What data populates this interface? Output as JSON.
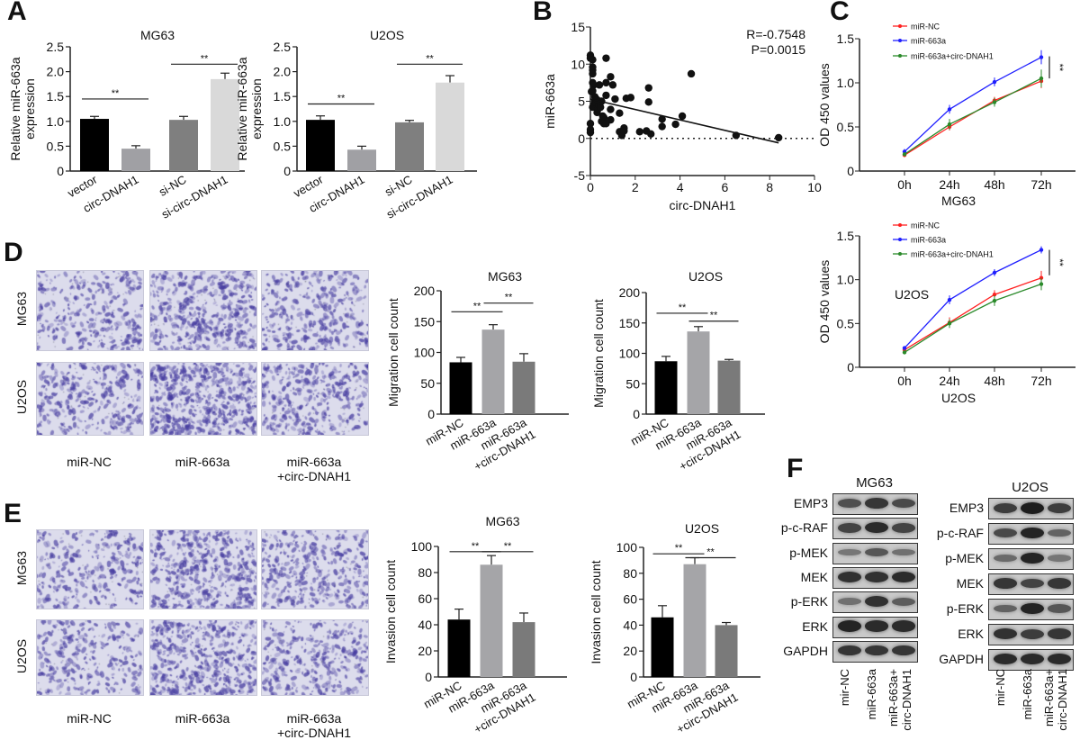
{
  "panels": {
    "A": "A",
    "B": "B",
    "C": "C",
    "D": "D",
    "E": "E",
    "F": "F"
  },
  "chart_data": [
    {
      "type": "bar",
      "panel": "A",
      "title": "MG63",
      "ylabel": [
        "Relative miR-663a",
        "expression"
      ],
      "categories": [
        [
          "vector"
        ],
        [
          "circ-DNAH1"
        ],
        [
          "si-NC"
        ],
        [
          "si-circ-DNAH1"
        ]
      ],
      "values": [
        1.05,
        0.45,
        1.03,
        1.85
      ],
      "errors": [
        0.05,
        0.06,
        0.07,
        0.12
      ],
      "colors": [
        "#000000",
        "#a0a0a4",
        "#7f7f7f",
        "#d9d9d9"
      ],
      "ylim": [
        0,
        2.5
      ],
      "yticks": [
        "0",
        "0.5",
        "1.0",
        "1.5",
        "2.0",
        "2.5"
      ],
      "significance": [
        {
          "from": 0,
          "to": 1,
          "y": 1.45,
          "label": "**"
        },
        {
          "from": 2,
          "to": 3,
          "y": 2.15,
          "label": "**"
        }
      ]
    },
    {
      "type": "bar",
      "panel": "A",
      "title": "U2OS",
      "ylabel": [
        "Relative miR-663a",
        "expression"
      ],
      "categories": [
        [
          "vector"
        ],
        [
          "circ-DNAH1"
        ],
        [
          "si-NC"
        ],
        [
          "si-circ-DNAH1"
        ]
      ],
      "values": [
        1.03,
        0.43,
        0.98,
        1.78
      ],
      "errors": [
        0.08,
        0.07,
        0.04,
        0.14
      ],
      "colors": [
        "#000000",
        "#a0a0a4",
        "#7f7f7f",
        "#d9d9d9"
      ],
      "ylim": [
        0,
        2.5
      ],
      "yticks": [
        "0",
        "0.5",
        "1.0",
        "1.5",
        "2.0",
        "2.5"
      ],
      "significance": [
        {
          "from": 0,
          "to": 1,
          "y": 1.35,
          "label": "**"
        },
        {
          "from": 2,
          "to": 3,
          "y": 2.15,
          "label": "**"
        }
      ]
    },
    {
      "type": "scatter",
      "panel": "B",
      "xlabel": "circ-DNAH1",
      "ylabel": "miR-663a",
      "xlim": [
        0,
        10
      ],
      "ylim": [
        -5,
        15
      ],
      "xticks": [
        "0",
        "2",
        "4",
        "6",
        "8",
        "10"
      ],
      "yticks": [
        "-5",
        "0",
        "5",
        "10",
        "15"
      ],
      "annotations": [
        "R=-0.7548",
        "P=0.0015"
      ],
      "fit_line": [
        [
          0,
          5.3
        ],
        [
          8.4,
          -0.6
        ]
      ],
      "reference_line_y": 0,
      "points": [
        [
          0,
          11.2
        ],
        [
          0,
          10.8
        ],
        [
          0.05,
          6.3
        ],
        [
          0,
          2
        ],
        [
          0,
          1.2
        ],
        [
          0,
          0.8
        ],
        [
          0.1,
          10.6
        ],
        [
          0.1,
          9.6
        ],
        [
          0.1,
          9.2
        ],
        [
          0.1,
          8.7
        ],
        [
          0.1,
          7.5
        ],
        [
          0.15,
          7.2
        ],
        [
          0.1,
          6.4
        ],
        [
          0.15,
          4.5
        ],
        [
          0.1,
          4.2
        ],
        [
          0.2,
          5.6
        ],
        [
          0.2,
          5
        ],
        [
          0.25,
          4.8
        ],
        [
          0.3,
          3.5
        ],
        [
          0.3,
          5.2
        ],
        [
          0.35,
          4
        ],
        [
          0.4,
          7.2
        ],
        [
          0.4,
          4.4
        ],
        [
          0.45,
          4.2
        ],
        [
          0.5,
          2.3
        ],
        [
          0.5,
          5
        ],
        [
          0.55,
          3
        ],
        [
          0.6,
          2.8
        ],
        [
          0.6,
          2
        ],
        [
          0.7,
          10.8
        ],
        [
          0.7,
          7.5
        ],
        [
          0.7,
          5.8
        ],
        [
          0.7,
          2
        ],
        [
          0.9,
          8.3
        ],
        [
          0.9,
          3.9
        ],
        [
          0.9,
          2.5
        ],
        [
          1,
          7.2
        ],
        [
          1.1,
          5.3
        ],
        [
          1.3,
          3.4
        ],
        [
          1.3,
          0.9
        ],
        [
          1.4,
          0.4
        ],
        [
          1.5,
          1.4
        ],
        [
          1.5,
          1
        ],
        [
          1.6,
          5.4
        ],
        [
          1.8,
          5.5
        ],
        [
          2.2,
          0.9
        ],
        [
          2.5,
          1
        ],
        [
          2.6,
          6.8
        ],
        [
          2.6,
          4.9
        ],
        [
          2.7,
          0.6
        ],
        [
          3.2,
          2.6
        ],
        [
          3.2,
          1.6
        ],
        [
          3.8,
          1.9
        ],
        [
          4.1,
          3
        ],
        [
          4.5,
          8.7
        ],
        [
          6.5,
          0.4
        ],
        [
          8.4,
          0.1
        ]
      ]
    },
    {
      "type": "line",
      "panel": "C",
      "xlabel": "MG63",
      "ylabel": "OD 450 values",
      "categories": [
        "0h",
        "24h",
        "48h",
        "72h"
      ],
      "ylim": [
        0,
        1.5
      ],
      "yticks": [
        "0",
        "0.5",
        "1.0",
        "1.5"
      ],
      "legend": "top-left",
      "series": [
        {
          "name": "miR-NC",
          "color": "#ff2020",
          "values": [
            0.18,
            0.5,
            0.8,
            1.02
          ],
          "errors": [
            0.02,
            0.04,
            0.04,
            0.08
          ]
        },
        {
          "name": "miR-663a",
          "color": "#1f1fff",
          "values": [
            0.22,
            0.7,
            1.01,
            1.29
          ],
          "errors": [
            0.03,
            0.05,
            0.05,
            0.08
          ]
        },
        {
          "name": "miR-663a+circ-DNAH1",
          "color": "#2a8a2a",
          "values": [
            0.19,
            0.53,
            0.78,
            1.05
          ],
          "errors": [
            0.02,
            0.06,
            0.05,
            0.1
          ]
        }
      ],
      "significance": {
        "label": "**",
        "from": 1.3,
        "to": 1.05
      }
    },
    {
      "type": "line",
      "panel": "C",
      "xlabel": "U2OS",
      "ylabel": "OD 450 values",
      "inner_label": "U2OS",
      "categories": [
        "0h",
        "24h",
        "48h",
        "72h"
      ],
      "ylim": [
        0,
        1.5
      ],
      "yticks": [
        "0",
        "0.5",
        "1.0",
        "1.5"
      ],
      "legend": "top-left",
      "series": [
        {
          "name": "miR-NC",
          "color": "#ff2020",
          "values": [
            0.2,
            0.51,
            0.83,
            1.02
          ],
          "errors": [
            0.02,
            0.06,
            0.05,
            0.08
          ]
        },
        {
          "name": "miR-663a",
          "color": "#1f1fff",
          "values": [
            0.22,
            0.77,
            1.08,
            1.34
          ],
          "errors": [
            0.02,
            0.05,
            0.04,
            0.04
          ]
        },
        {
          "name": "miR-663a+circ-DNAH1",
          "color": "#2a8a2a",
          "values": [
            0.17,
            0.5,
            0.76,
            0.95
          ],
          "errors": [
            0.02,
            0.05,
            0.06,
            0.07
          ]
        }
      ],
      "significance": {
        "label": "**",
        "from": 1.34,
        "to": 1.05
      }
    },
    {
      "type": "bar",
      "panel": "D",
      "title": "MG63",
      "ylabel": [
        "Migration cell count"
      ],
      "categories": [
        [
          "miR-NC"
        ],
        [
          "miR-663a"
        ],
        [
          "miR-663a",
          "+circ-DNAH1"
        ]
      ],
      "values": [
        84,
        137,
        85
      ],
      "errors": [
        8,
        8,
        13
      ],
      "colors": [
        "#000000",
        "#a5a5a8",
        "#7a7a7a"
      ],
      "ylim": [
        0,
        200
      ],
      "yticks": [
        "0",
        "50",
        "100",
        "150",
        "200"
      ],
      "significance": [
        {
          "from": 0,
          "to": 1,
          "y": 166,
          "label": "**"
        },
        {
          "from": 1,
          "to": 2,
          "y": 180,
          "label": "**"
        }
      ]
    },
    {
      "type": "bar",
      "panel": "D",
      "title": "U2OS",
      "ylabel": [
        "Migration cell count"
      ],
      "categories": [
        [
          "miR-NC"
        ],
        [
          "miR-663a"
        ],
        [
          "miR-663a",
          "+circ-DNAH1"
        ]
      ],
      "values": [
        87,
        136,
        88
      ],
      "errors": [
        8,
        8,
        2
      ],
      "colors": [
        "#000000",
        "#a5a5a8",
        "#7a7a7a"
      ],
      "ylim": [
        0,
        200
      ],
      "yticks": [
        "0",
        "50",
        "100",
        "150",
        "200"
      ],
      "significance": [
        {
          "from": 0,
          "to": 1,
          "y": 166,
          "label": "**"
        },
        {
          "from": 1,
          "to": 2,
          "y": 153,
          "label": "**"
        }
      ]
    },
    {
      "type": "bar",
      "panel": "E",
      "title": "MG63",
      "ylabel": [
        "Invasion cell count"
      ],
      "categories": [
        [
          "miR-NC"
        ],
        [
          "miR-663a"
        ],
        [
          "miR-663a",
          "+circ-DNAH1"
        ]
      ],
      "values": [
        44,
        86,
        42
      ],
      "errors": [
        8,
        7,
        7
      ],
      "colors": [
        "#000000",
        "#a5a5a8",
        "#7a7a7a"
      ],
      "ylim": [
        0,
        100
      ],
      "yticks": [
        "0",
        "20",
        "40",
        "60",
        "80",
        "100"
      ],
      "significance": [
        {
          "from": 0,
          "to": 1,
          "y": 96,
          "label": "**"
        },
        {
          "from": 1,
          "to": 2,
          "y": 96,
          "label": "**"
        }
      ]
    },
    {
      "type": "bar",
      "panel": "E",
      "title": "U2OS",
      "ylabel": [
        "Invasion cell count"
      ],
      "categories": [
        [
          "miR-NC"
        ],
        [
          "miR-663a"
        ],
        [
          "miR-663a",
          "+circ-DNAH1"
        ]
      ],
      "values": [
        46,
        87,
        40
      ],
      "errors": [
        9,
        5,
        2
      ],
      "colors": [
        "#000000",
        "#a5a5a8",
        "#7a7a7a"
      ],
      "ylim": [
        0,
        100
      ],
      "yticks": [
        "0",
        "20",
        "40",
        "60",
        "80",
        "100"
      ],
      "significance": [
        {
          "from": 0,
          "to": 1,
          "y": 95,
          "label": "**"
        },
        {
          "from": 1,
          "to": 2,
          "y": 92,
          "label": "**"
        }
      ]
    }
  ],
  "micrographs": {
    "D": {
      "rows": [
        "MG63",
        "U2OS"
      ],
      "columns": [
        [
          "miR-NC"
        ],
        [
          "miR-663a"
        ],
        [
          "miR-663a",
          "+circ-DNAH1"
        ]
      ],
      "stain_color": "#5a4fb0",
      "cell_density": [
        [
          0.35,
          0.6,
          0.4
        ],
        [
          0.4,
          0.85,
          0.45
        ]
      ]
    },
    "E": {
      "rows": [
        "MG63",
        "U2OS"
      ],
      "columns": [
        [
          "miR-NC"
        ],
        [
          "miR-663a"
        ],
        [
          "miR-663a",
          "+circ-DNAH1"
        ]
      ],
      "stain_color": "#5a4fb0",
      "cell_density": [
        [
          0.35,
          0.65,
          0.45
        ],
        [
          0.3,
          0.7,
          0.4
        ]
      ]
    }
  },
  "western_blot": {
    "groups": [
      {
        "title": "MG63",
        "lanes": [
          [
            "mir-NC"
          ],
          [
            "miR-663a"
          ],
          [
            "miR-663a+",
            "circ-DNAH1"
          ]
        ],
        "proteins": [
          "EMP3",
          "p-c-RAF",
          "p-MEK",
          "MEK",
          "p-ERK",
          "ERK",
          "GAPDH"
        ],
        "band_intensity": [
          [
            0.6,
            0.8,
            0.65
          ],
          [
            0.7,
            0.9,
            0.7
          ],
          [
            0.3,
            0.55,
            0.35
          ],
          [
            0.85,
            0.85,
            0.9
          ],
          [
            0.35,
            0.85,
            0.5
          ],
          [
            0.95,
            0.9,
            0.9
          ],
          [
            0.8,
            0.8,
            0.8
          ]
        ]
      },
      {
        "title": "U2OS",
        "lanes": [
          [
            "mir-NC"
          ],
          [
            "miR-663a"
          ],
          [
            "miR-663a+",
            "circ-DNAH1"
          ]
        ],
        "proteins": [
          "EMP3",
          "p-c-RAF",
          "p-MEK",
          "MEK",
          "p-ERK",
          "ERK",
          "GAPDH"
        ],
        "band_intensity": [
          [
            0.75,
            1.0,
            0.75
          ],
          [
            0.65,
            0.95,
            0.45
          ],
          [
            0.4,
            0.95,
            0.3
          ],
          [
            0.8,
            0.7,
            0.8
          ],
          [
            0.45,
            0.95,
            0.55
          ],
          [
            0.85,
            0.75,
            0.8
          ],
          [
            0.9,
            0.9,
            0.9
          ]
        ]
      }
    ]
  }
}
